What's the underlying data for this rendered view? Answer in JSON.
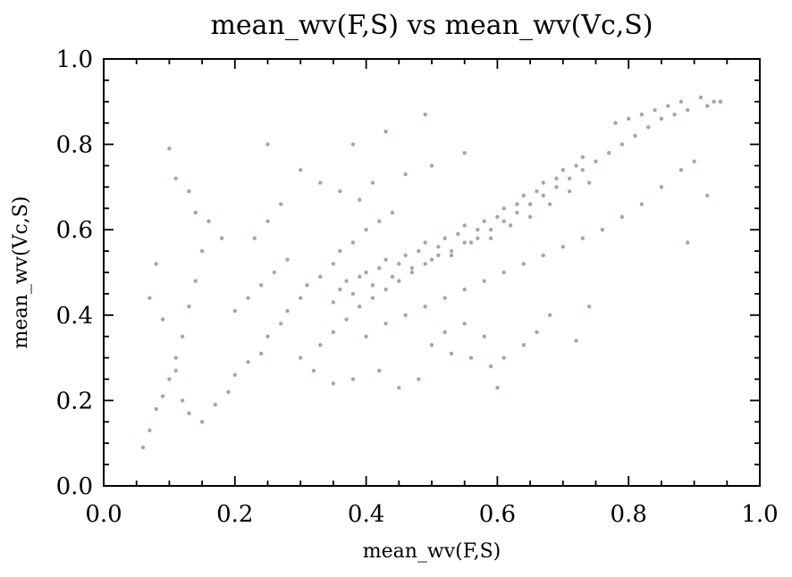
{
  "chart_data": {
    "type": "scatter",
    "title": "mean_wv(F,S) vs mean_wv(Vc,S)",
    "xlabel": "mean_wv(F,S)",
    "ylabel": "mean_wv(Vc,S)",
    "xlim": [
      0.0,
      1.0
    ],
    "ylim": [
      0.0,
      1.0
    ],
    "xticks": [
      0.0,
      0.2,
      0.4,
      0.6,
      0.8,
      1.0
    ],
    "yticks": [
      0.0,
      0.2,
      0.4,
      0.6,
      0.8,
      1.0
    ],
    "xtick_labels": [
      "0.0",
      "0.2",
      "0.4",
      "0.6",
      "0.8",
      "1.0"
    ],
    "ytick_labels": [
      "0.0",
      "0.2",
      "0.4",
      "0.6",
      "0.8",
      "1.0"
    ],
    "grid": false,
    "color": "#7a5c8e",
    "series": [
      {
        "points": [
          [
            0.06,
            0.09
          ],
          [
            0.07,
            0.13
          ],
          [
            0.08,
            0.18
          ],
          [
            0.09,
            0.21
          ],
          [
            0.1,
            0.25
          ],
          [
            0.11,
            0.3
          ],
          [
            0.12,
            0.35
          ],
          [
            0.13,
            0.42
          ],
          [
            0.14,
            0.48
          ],
          [
            0.15,
            0.55
          ],
          [
            0.1,
            0.79
          ],
          [
            0.11,
            0.72
          ],
          [
            0.13,
            0.69
          ],
          [
            0.14,
            0.64
          ],
          [
            0.16,
            0.62
          ],
          [
            0.18,
            0.58
          ],
          [
            0.08,
            0.52
          ],
          [
            0.07,
            0.44
          ],
          [
            0.09,
            0.39
          ],
          [
            0.11,
            0.27
          ],
          [
            0.12,
            0.2
          ],
          [
            0.13,
            0.17
          ],
          [
            0.15,
            0.15
          ],
          [
            0.17,
            0.19
          ],
          [
            0.19,
            0.22
          ],
          [
            0.2,
            0.26
          ],
          [
            0.22,
            0.29
          ],
          [
            0.24,
            0.31
          ],
          [
            0.25,
            0.35
          ],
          [
            0.27,
            0.38
          ],
          [
            0.28,
            0.41
          ],
          [
            0.3,
            0.44
          ],
          [
            0.31,
            0.47
          ],
          [
            0.33,
            0.49
          ],
          [
            0.35,
            0.52
          ],
          [
            0.36,
            0.55
          ],
          [
            0.38,
            0.57
          ],
          [
            0.4,
            0.6
          ],
          [
            0.42,
            0.62
          ],
          [
            0.44,
            0.64
          ],
          [
            0.2,
            0.41
          ],
          [
            0.22,
            0.44
          ],
          [
            0.24,
            0.47
          ],
          [
            0.26,
            0.5
          ],
          [
            0.28,
            0.53
          ],
          [
            0.23,
            0.58
          ],
          [
            0.25,
            0.62
          ],
          [
            0.27,
            0.66
          ],
          [
            0.25,
            0.8
          ],
          [
            0.38,
            0.8
          ],
          [
            0.43,
            0.83
          ],
          [
            0.49,
            0.87
          ],
          [
            0.3,
            0.74
          ],
          [
            0.33,
            0.71
          ],
          [
            0.36,
            0.69
          ],
          [
            0.39,
            0.67
          ],
          [
            0.41,
            0.71
          ],
          [
            0.46,
            0.73
          ],
          [
            0.5,
            0.75
          ],
          [
            0.55,
            0.78
          ],
          [
            0.3,
            0.3
          ],
          [
            0.33,
            0.33
          ],
          [
            0.35,
            0.36
          ],
          [
            0.37,
            0.39
          ],
          [
            0.39,
            0.42
          ],
          [
            0.41,
            0.44
          ],
          [
            0.43,
            0.46
          ],
          [
            0.45,
            0.48
          ],
          [
            0.47,
            0.5
          ],
          [
            0.49,
            0.52
          ],
          [
            0.51,
            0.54
          ],
          [
            0.53,
            0.55
          ],
          [
            0.55,
            0.57
          ],
          [
            0.57,
            0.58
          ],
          [
            0.59,
            0.6
          ],
          [
            0.61,
            0.62
          ],
          [
            0.63,
            0.64
          ],
          [
            0.65,
            0.66
          ],
          [
            0.67,
            0.68
          ],
          [
            0.69,
            0.7
          ],
          [
            0.71,
            0.72
          ],
          [
            0.73,
            0.74
          ],
          [
            0.75,
            0.76
          ],
          [
            0.77,
            0.78
          ],
          [
            0.79,
            0.8
          ],
          [
            0.81,
            0.82
          ],
          [
            0.83,
            0.84
          ],
          [
            0.85,
            0.86
          ],
          [
            0.87,
            0.87
          ],
          [
            0.89,
            0.88
          ],
          [
            0.91,
            0.91
          ],
          [
            0.93,
            0.9
          ],
          [
            0.94,
            0.9
          ],
          [
            0.92,
            0.89
          ],
          [
            0.88,
            0.9
          ],
          [
            0.86,
            0.89
          ],
          [
            0.84,
            0.88
          ],
          [
            0.82,
            0.87
          ],
          [
            0.8,
            0.86
          ],
          [
            0.78,
            0.85
          ],
          [
            0.4,
            0.35
          ],
          [
            0.43,
            0.38
          ],
          [
            0.46,
            0.4
          ],
          [
            0.49,
            0.42
          ],
          [
            0.52,
            0.44
          ],
          [
            0.55,
            0.46
          ],
          [
            0.58,
            0.48
          ],
          [
            0.61,
            0.5
          ],
          [
            0.64,
            0.52
          ],
          [
            0.67,
            0.54
          ],
          [
            0.7,
            0.56
          ],
          [
            0.73,
            0.58
          ],
          [
            0.76,
            0.6
          ],
          [
            0.79,
            0.63
          ],
          [
            0.82,
            0.66
          ],
          [
            0.85,
            0.7
          ],
          [
            0.88,
            0.74
          ],
          [
            0.9,
            0.76
          ],
          [
            0.92,
            0.68
          ],
          [
            0.89,
            0.57
          ],
          [
            0.5,
            0.33
          ],
          [
            0.53,
            0.31
          ],
          [
            0.56,
            0.3
          ],
          [
            0.59,
            0.28
          ],
          [
            0.61,
            0.3
          ],
          [
            0.64,
            0.33
          ],
          [
            0.66,
            0.36
          ],
          [
            0.68,
            0.4
          ],
          [
            0.72,
            0.34
          ],
          [
            0.74,
            0.42
          ],
          [
            0.45,
            0.23
          ],
          [
            0.48,
            0.25
          ],
          [
            0.42,
            0.27
          ],
          [
            0.38,
            0.25
          ],
          [
            0.35,
            0.24
          ],
          [
            0.32,
            0.27
          ],
          [
            0.6,
            0.23
          ],
          [
            0.58,
            0.35
          ],
          [
            0.55,
            0.38
          ],
          [
            0.52,
            0.36
          ],
          [
            0.35,
            0.43
          ],
          [
            0.36,
            0.46
          ],
          [
            0.37,
            0.48
          ],
          [
            0.38,
            0.45
          ],
          [
            0.39,
            0.49
          ],
          [
            0.4,
            0.5
          ],
          [
            0.41,
            0.47
          ],
          [
            0.42,
            0.51
          ],
          [
            0.43,
            0.53
          ],
          [
            0.44,
            0.49
          ],
          [
            0.45,
            0.52
          ],
          [
            0.46,
            0.54
          ],
          [
            0.47,
            0.51
          ],
          [
            0.48,
            0.55
          ],
          [
            0.49,
            0.57
          ],
          [
            0.5,
            0.53
          ],
          [
            0.51,
            0.56
          ],
          [
            0.52,
            0.58
          ],
          [
            0.53,
            0.54
          ],
          [
            0.54,
            0.59
          ],
          [
            0.55,
            0.61
          ],
          [
            0.56,
            0.57
          ],
          [
            0.57,
            0.6
          ],
          [
            0.58,
            0.62
          ],
          [
            0.59,
            0.58
          ],
          [
            0.6,
            0.63
          ],
          [
            0.61,
            0.65
          ],
          [
            0.62,
            0.61
          ],
          [
            0.63,
            0.66
          ],
          [
            0.64,
            0.68
          ],
          [
            0.65,
            0.63
          ],
          [
            0.66,
            0.69
          ],
          [
            0.67,
            0.71
          ],
          [
            0.68,
            0.66
          ],
          [
            0.69,
            0.72
          ],
          [
            0.7,
            0.74
          ],
          [
            0.71,
            0.69
          ],
          [
            0.72,
            0.75
          ],
          [
            0.73,
            0.77
          ],
          [
            0.74,
            0.71
          ]
        ]
      }
    ]
  }
}
